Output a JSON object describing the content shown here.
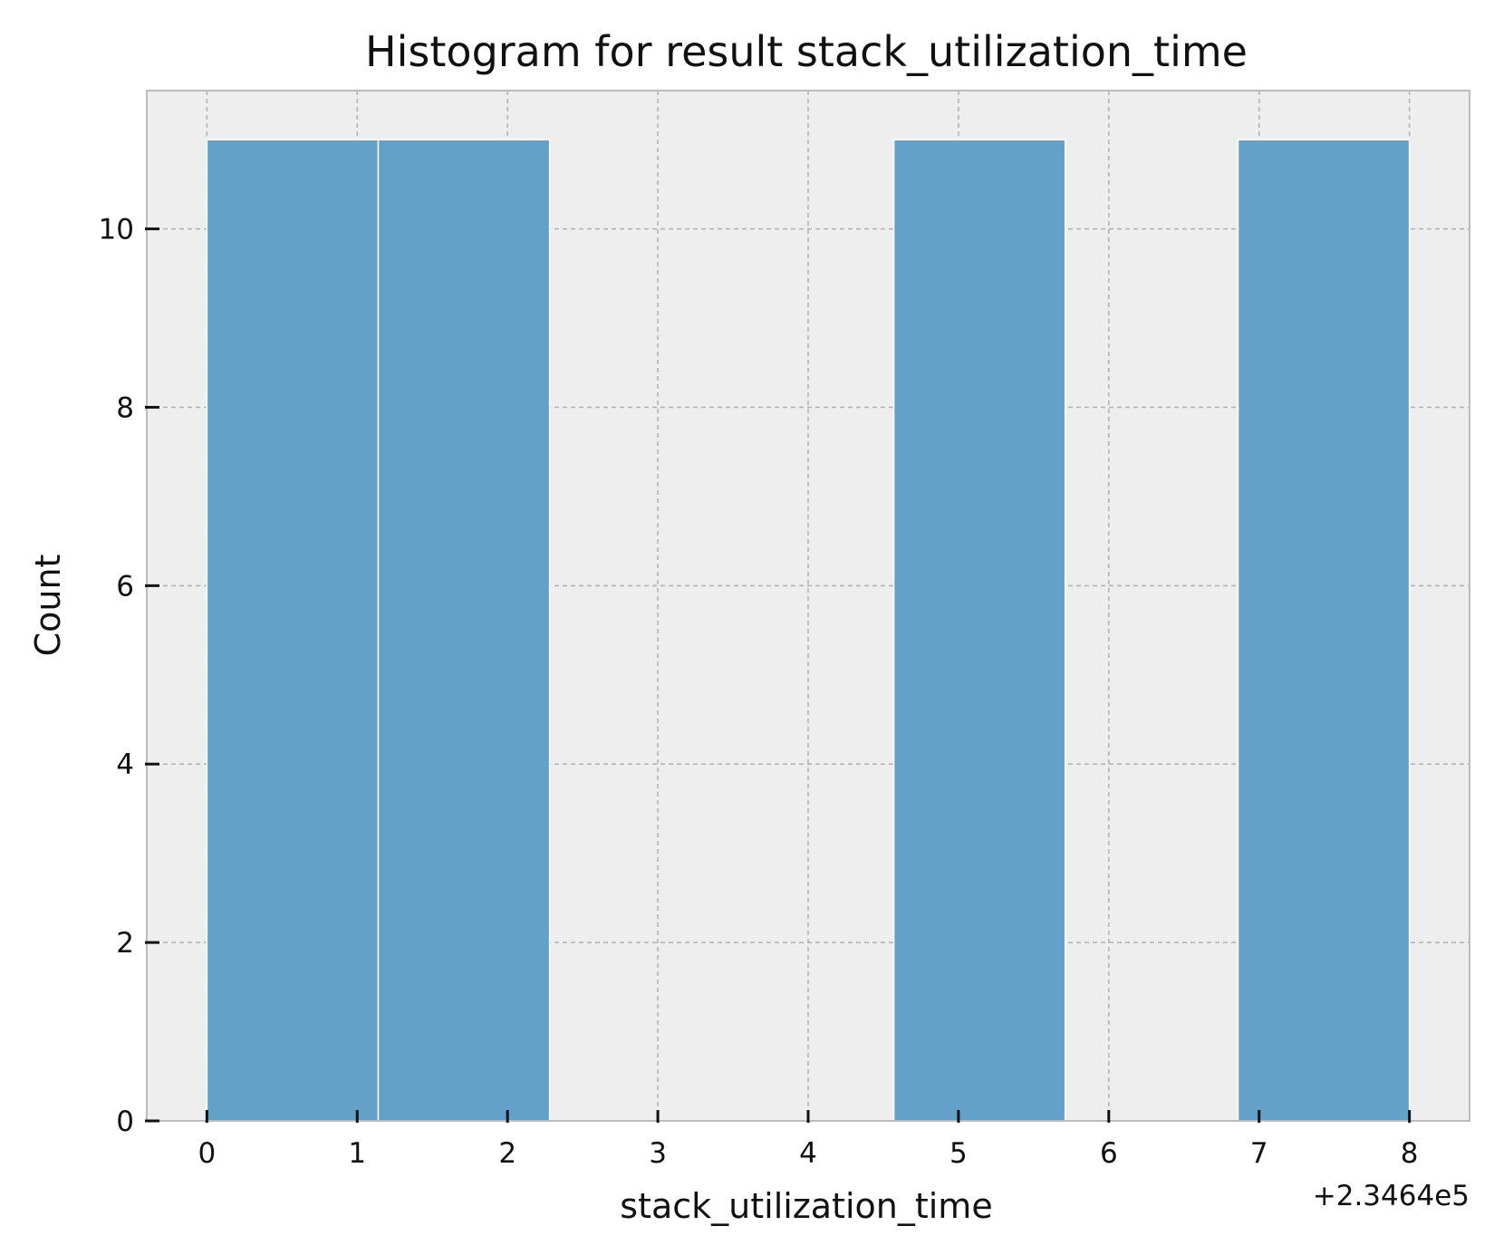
{
  "chart_data": {
    "type": "histogram",
    "title": "Histogram for result stack_utilization_time",
    "xlabel": "stack_utilization_time",
    "ylabel": "Count",
    "x_offset_label": "+2.3464e5",
    "x_offset": 234640,
    "xlim": [
      -0.4,
      8.4
    ],
    "ylim": [
      0,
      11.55
    ],
    "xticks": [
      0,
      1,
      2,
      3,
      4,
      5,
      6,
      7,
      8
    ],
    "yticks": [
      0,
      2,
      4,
      6,
      8,
      10
    ],
    "bins": [
      {
        "x0": 0.0,
        "x1": 1.14,
        "count": 11
      },
      {
        "x0": 1.14,
        "x1": 2.28,
        "count": 11
      },
      {
        "x0": 4.57,
        "x1": 5.71,
        "count": 11
      },
      {
        "x0": 6.86,
        "x1": 8.0,
        "count": 11
      }
    ],
    "grid": true,
    "colors": {
      "bar": "#64a1c8",
      "plot_background": "#eeeeee",
      "grid": "#b0b0b0",
      "spine": "#bcbcbc"
    }
  }
}
